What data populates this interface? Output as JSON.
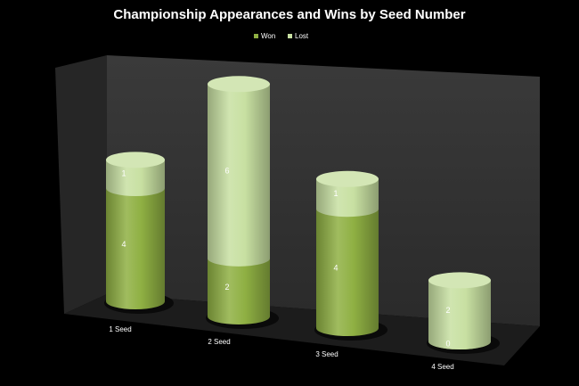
{
  "chart_data": {
    "type": "bar",
    "title": "Championship Appearances and Wins by Seed Number",
    "categories": [
      "1 Seed",
      "2 Seed",
      "3 Seed",
      "4 Seed"
    ],
    "series": [
      {
        "name": "Won",
        "color": "#8fb043",
        "values": [
          4,
          2,
          4,
          0
        ]
      },
      {
        "name": "Lost",
        "color": "#c8e0a2",
        "values": [
          1,
          6,
          1,
          2
        ]
      }
    ],
    "stacked": true,
    "legend": "top"
  }
}
